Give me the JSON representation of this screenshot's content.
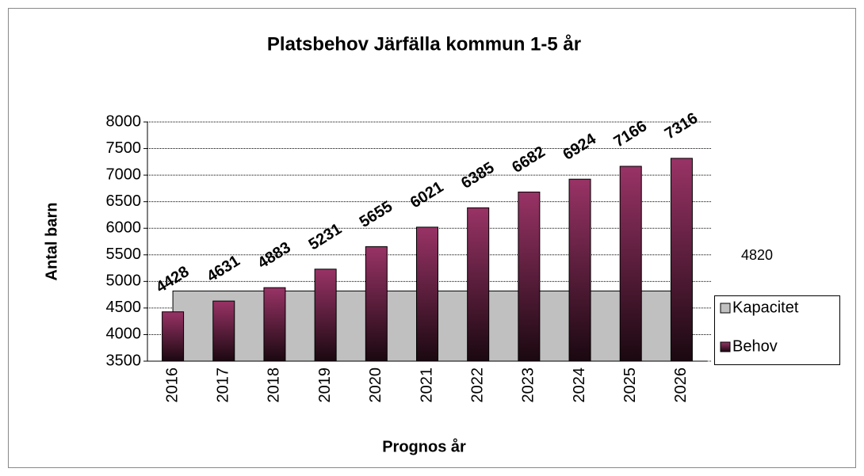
{
  "chart_data": {
    "type": "bar",
    "title": "Platsbehov Järfälla kommun 1-5 år",
    "x_label": "Prognos år",
    "y_label": "Antal barn",
    "categories": [
      "2016",
      "2017",
      "2018",
      "2019",
      "2020",
      "2021",
      "2022",
      "2023",
      "2024",
      "2025",
      "2026"
    ],
    "series": [
      {
        "name": "Kapacitet",
        "type": "area",
        "color": "#c0c0c0",
        "values": [
          4820,
          4820,
          4820,
          4820,
          4820,
          4820,
          4820,
          4820,
          4820,
          4820,
          4820
        ]
      },
      {
        "name": "Behov",
        "type": "bar",
        "color": "#993366",
        "values": [
          4428,
          4631,
          4883,
          5231,
          5655,
          6021,
          6385,
          6682,
          6924,
          7166,
          7316
        ]
      }
    ],
    "ylim": [
      3500,
      8000
    ],
    "yticks": [
      3500,
      4000,
      4500,
      5000,
      5500,
      6000,
      6500,
      7000,
      7500,
      8000
    ],
    "grid": true,
    "legend": "right"
  }
}
